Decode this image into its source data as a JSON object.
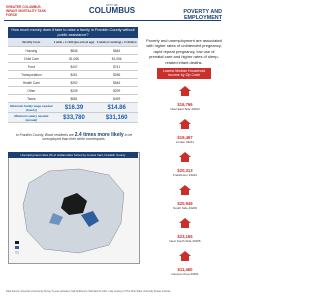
{
  "header": {
    "left_logo": "GREATER COLUMBUS INFANT MORTALITY TASK FORCE",
    "center_logo_top": "CITY OF",
    "center_logo": "COLUMBUS",
    "topic": "POVERTY AND EMPLOYMENT"
  },
  "table": {
    "title": "How much money does it take to raise a family in Franklin County without public assistance?",
    "columns": [
      "Monthly Costs",
      "1 adult + 1 child (pre-school age)",
      "2 adults (1 working) + 2 children"
    ],
    "rows": [
      [
        "Housing",
        "$846",
        "$846"
      ],
      [
        "Child Care",
        "$1,066",
        "$1,066"
      ],
      [
        "Food",
        "$447",
        "$741"
      ],
      [
        "Transportation",
        "$261",
        "$286"
      ],
      [
        "Health Care",
        "$392",
        "$546"
      ],
      [
        "Other",
        "$205",
        "$299"
      ],
      [
        "Taxes",
        "$581",
        "$499"
      ]
    ],
    "summary": [
      [
        "Minimum family wage needed (hourly)",
        "$16.39",
        "$14.86"
      ],
      [
        "Minimum salary needed (annual)",
        "$33,780",
        "$31,160"
      ]
    ]
  },
  "note": {
    "before": "In Franklin County, Black residents are",
    "highlight": "2.4 times more likely",
    "after": "to be unemployed than their white counterparts."
  },
  "map": {
    "title": "Unemployment rates (% of civilian labor force) by census tract, Franklin County"
  },
  "right": {
    "paragraph": "Poverty and unemployment are associated with higher rates of unintended pregnancy, rapid repeat pregnancy, low use of prenatal care and higher rates of sleep-related infant deaths.",
    "box": "Lowest Median Household Income by Zip Code",
    "items": [
      {
        "amount": "$16,766",
        "place": "Near East Side 43203"
      },
      {
        "amount": "$19,467",
        "place": "Linden 43211"
      },
      {
        "amount": "$20,313",
        "place": "Franklinton 43222"
      },
      {
        "amount": "$20,949",
        "place": "South Side 43206"
      },
      {
        "amount": "$23,165",
        "place": "Near South Side 43205"
      },
      {
        "amount": "$11,460",
        "place": "Campus Area 43201"
      }
    ]
  },
  "footer": "Data Source: American Community Survey 5-year estimates; Self-Sufficiency Standard for Ohio; map courtesy of The Ohio State University Kirwan Institute."
}
